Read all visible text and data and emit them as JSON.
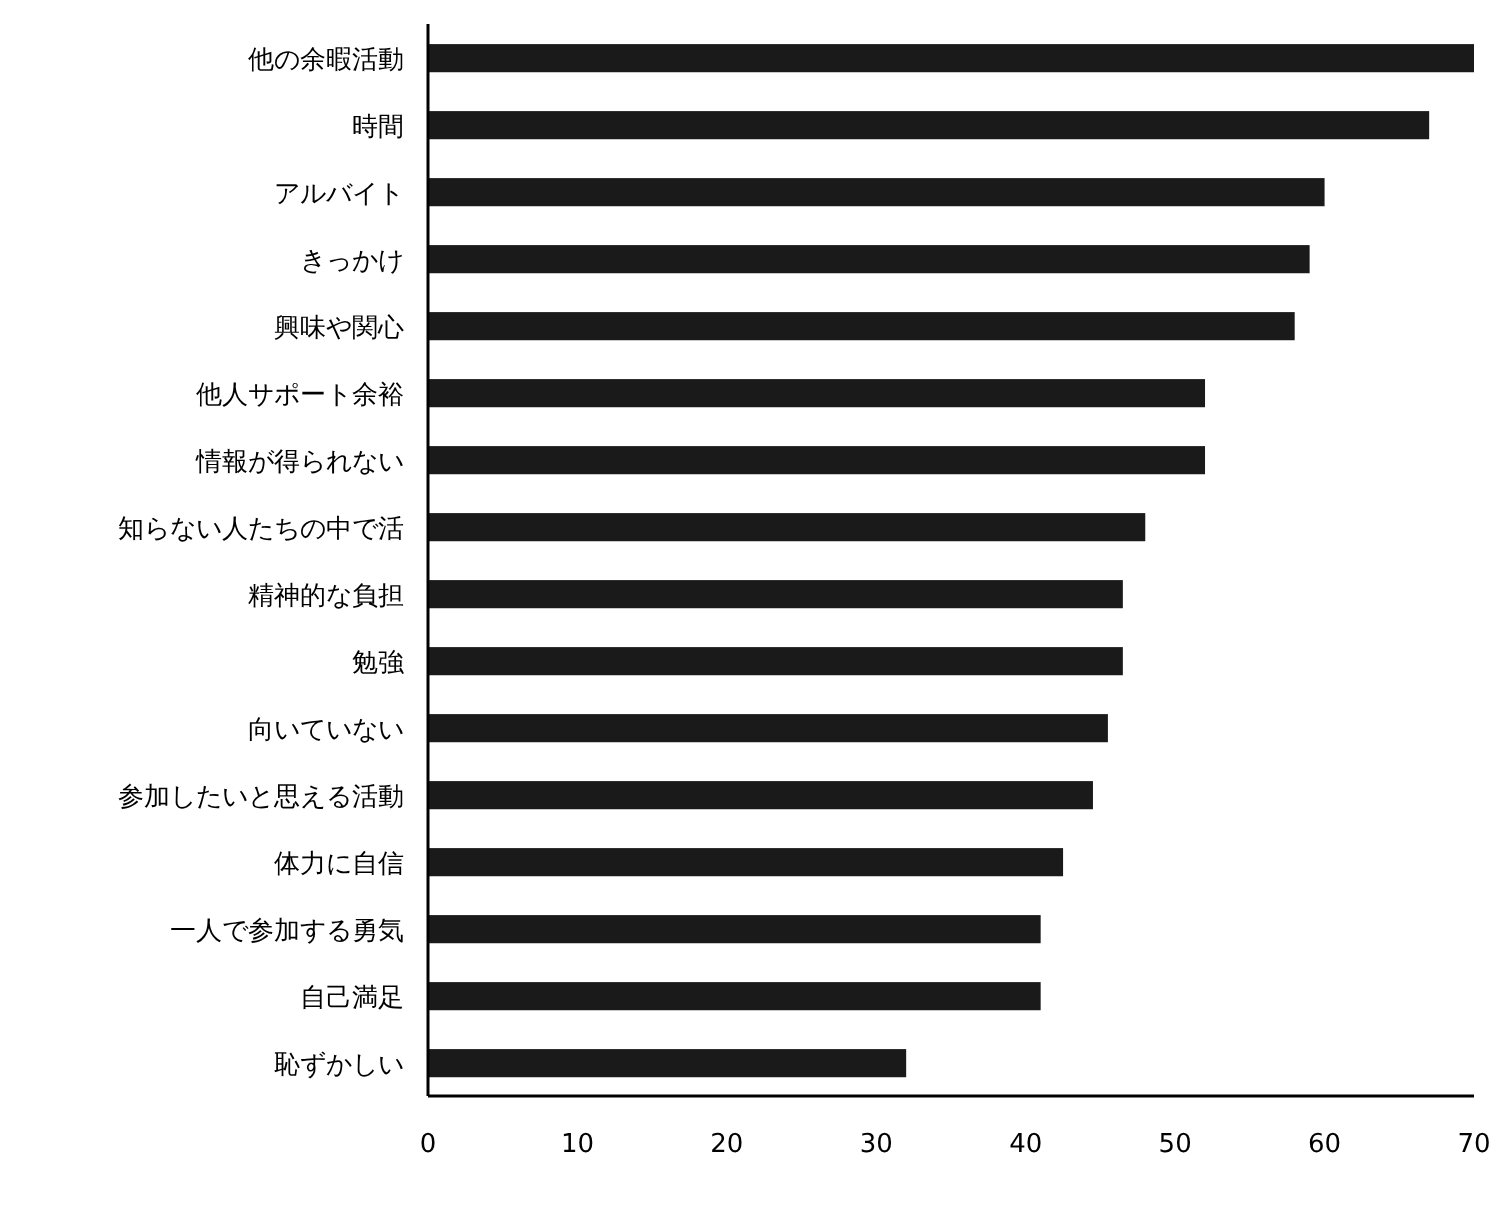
{
  "chart_data": {
    "type": "bar",
    "orientation": "horizontal",
    "categories": [
      "他の余暇活動",
      "時間",
      "アルバイト",
      "きっかけ",
      "興味や関心",
      "他人サポート余裕",
      "情報が得られない",
      "知らない人たちの中で活",
      "精神的な負担",
      "勉強",
      "向いていない",
      "参加したいと思える活動",
      "体力に自信",
      "一人で参加する勇気",
      "自己満足",
      "恥ずかしい"
    ],
    "values": [
      70,
      67,
      60,
      59,
      58,
      52,
      52,
      48,
      46.5,
      46.5,
      45.5,
      44.5,
      42.5,
      41,
      41,
      32
    ],
    "color": "#1a1a1a",
    "xlim": [
      0,
      70
    ],
    "xticks": [
      0,
      10,
      20,
      30,
      40,
      50,
      60,
      70
    ],
    "grid": false
  }
}
